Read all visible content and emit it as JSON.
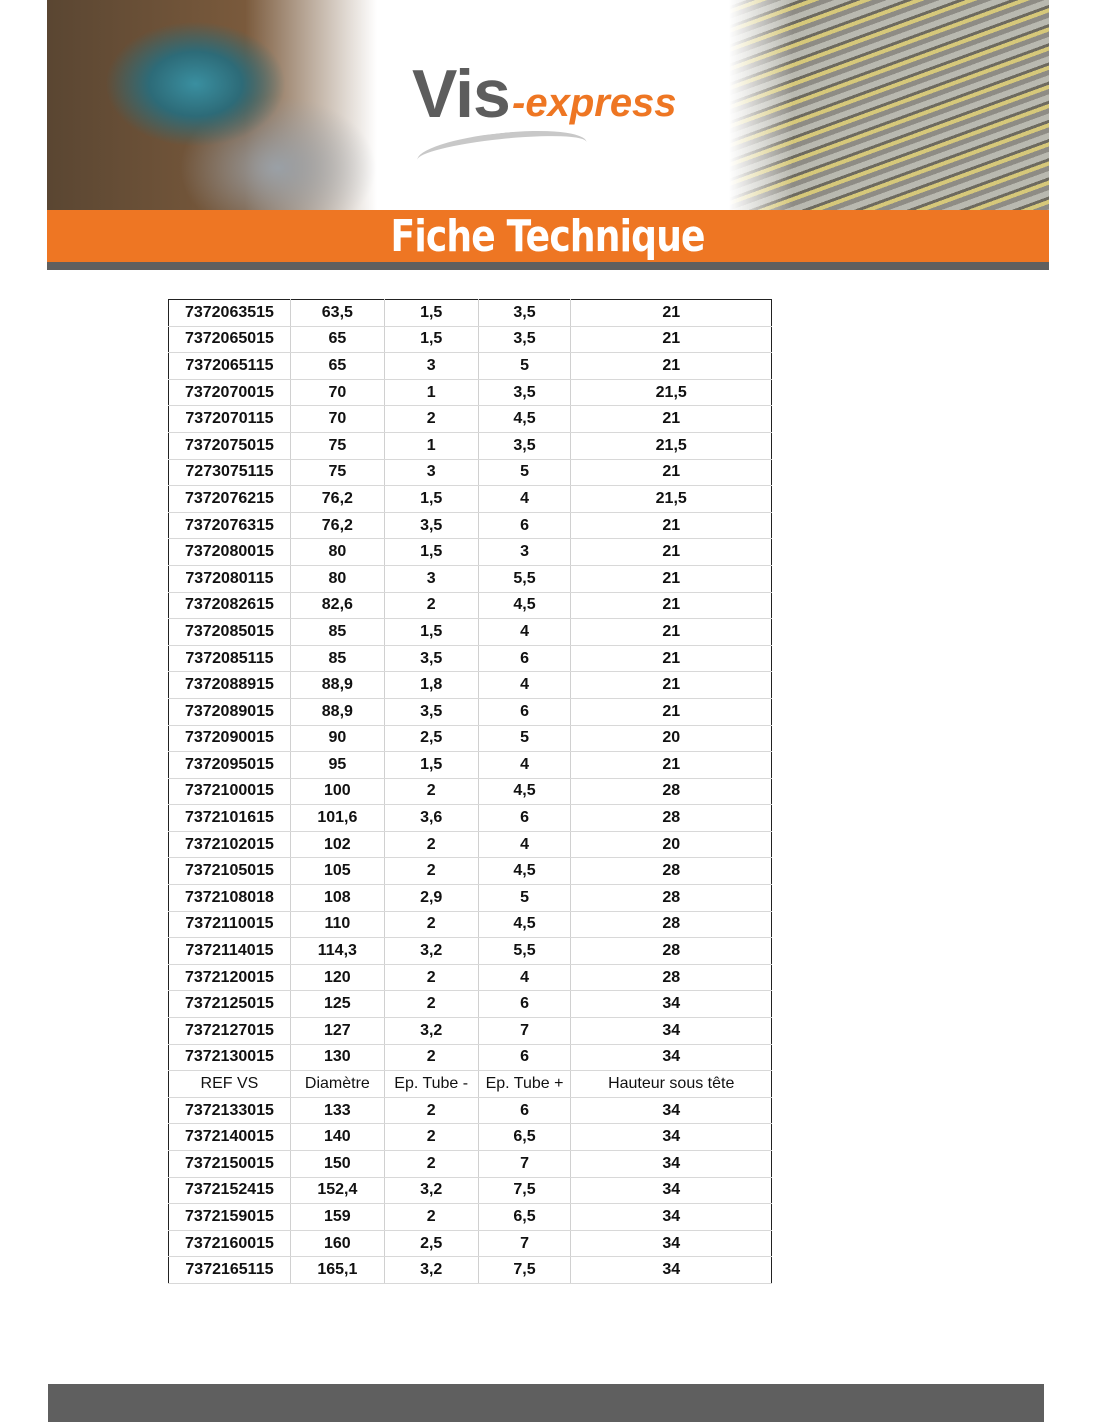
{
  "header": {
    "logo_main": "Vis",
    "logo_suffix": "-express",
    "title": "Fiche Technique",
    "accent_color": "#ee7623"
  },
  "table": {
    "columns": [
      "REF VS",
      "Diamètre",
      "Ep. Tube -",
      "Ep. Tube +",
      "Hauteur sous tête"
    ],
    "rows_before_header": [
      [
        "7372063515",
        "63,5",
        "1,5",
        "3,5",
        "21"
      ],
      [
        "7372065015",
        "65",
        "1,5",
        "3,5",
        "21"
      ],
      [
        "7372065115",
        "65",
        "3",
        "5",
        "21"
      ],
      [
        "7372070015",
        "70",
        "1",
        "3,5",
        "21,5"
      ],
      [
        "7372070115",
        "70",
        "2",
        "4,5",
        "21"
      ],
      [
        "7372075015",
        "75",
        "1",
        "3,5",
        "21,5"
      ],
      [
        "7273075115",
        "75",
        "3",
        "5",
        "21"
      ],
      [
        "7372076215",
        "76,2",
        "1,5",
        "4",
        "21,5"
      ],
      [
        "7372076315",
        "76,2",
        "3,5",
        "6",
        "21"
      ],
      [
        "7372080015",
        "80",
        "1,5",
        "3",
        "21"
      ],
      [
        "7372080115",
        "80",
        "3",
        "5,5",
        "21"
      ],
      [
        "7372082615",
        "82,6",
        "2",
        "4,5",
        "21"
      ],
      [
        "7372085015",
        "85",
        "1,5",
        "4",
        "21"
      ],
      [
        "7372085115",
        "85",
        "3,5",
        "6",
        "21"
      ],
      [
        "7372088915",
        "88,9",
        "1,8",
        "4",
        "21"
      ],
      [
        "7372089015",
        "88,9",
        "3,5",
        "6",
        "21"
      ],
      [
        "7372090015",
        "90",
        "2,5",
        "5",
        "20"
      ],
      [
        "7372095015",
        "95",
        "1,5",
        "4",
        "21"
      ],
      [
        "7372100015",
        "100",
        "2",
        "4,5",
        "28"
      ],
      [
        "7372101615",
        "101,6",
        "3,6",
        "6",
        "28"
      ],
      [
        "7372102015",
        "102",
        "2",
        "4",
        "20"
      ],
      [
        "7372105015",
        "105",
        "2",
        "4,5",
        "28"
      ],
      [
        "7372108018",
        "108",
        "2,9",
        "5",
        "28"
      ],
      [
        "7372110015",
        "110",
        "2",
        "4,5",
        "28"
      ],
      [
        "7372114015",
        "114,3",
        "3,2",
        "5,5",
        "28"
      ],
      [
        "7372120015",
        "120",
        "2",
        "4",
        "28"
      ],
      [
        "7372125015",
        "125",
        "2",
        "6",
        "34"
      ],
      [
        "7372127015",
        "127",
        "3,2",
        "7",
        "34"
      ],
      [
        "7372130015",
        "130",
        "2",
        "6",
        "34"
      ]
    ],
    "rows_after_header": [
      [
        "7372133015",
        "133",
        "2",
        "6",
        "34"
      ],
      [
        "7372140015",
        "140",
        "2",
        "6,5",
        "34"
      ],
      [
        "7372150015",
        "150",
        "2",
        "7",
        "34"
      ],
      [
        "7372152415",
        "152,4",
        "3,2",
        "7,5",
        "34"
      ],
      [
        "7372159015",
        "159",
        "2",
        "6,5",
        "34"
      ],
      [
        "7372160015",
        "160",
        "2,5",
        "7",
        "34"
      ],
      [
        "7372165115",
        "165,1",
        "3,2",
        "7,5",
        "34"
      ]
    ]
  }
}
